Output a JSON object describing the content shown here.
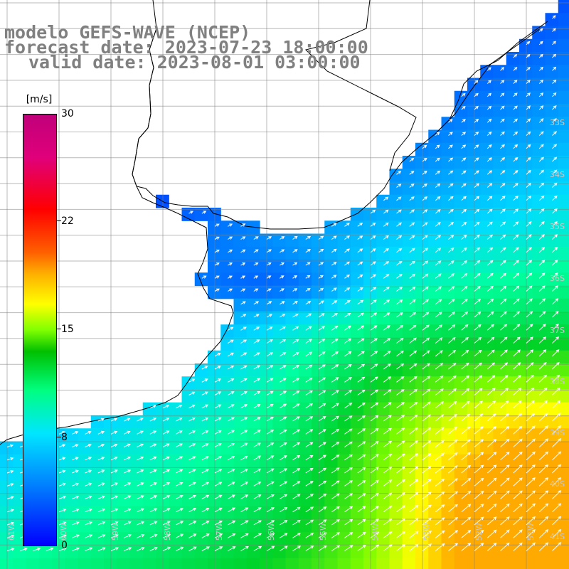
{
  "title": {
    "model": "modelo GEFS-WAVE (NCEP)",
    "forecast": "forecast date: 2023-07-23 18:00:00",
    "valid": "valid date: 2023-08-01 03:00:00"
  },
  "colorbar": {
    "unit": "[m/s]",
    "ticks": [
      "30",
      "22",
      "15",
      "8",
      "0"
    ]
  },
  "lat_labels": [
    "33S",
    "34S",
    "35S",
    "36S",
    "37S",
    "38S",
    "39S",
    "40S",
    "41S"
  ],
  "lon_labels": [
    "61W",
    "60W",
    "59W",
    "58W",
    "57W",
    "56W",
    "55W",
    "54W",
    "53W",
    "52W",
    "51W"
  ],
  "colors": {
    "land": "#ffffff",
    "grid": "#808080",
    "coast": "#000000",
    "arrow": "#ffffff",
    "title": "#808080"
  }
}
